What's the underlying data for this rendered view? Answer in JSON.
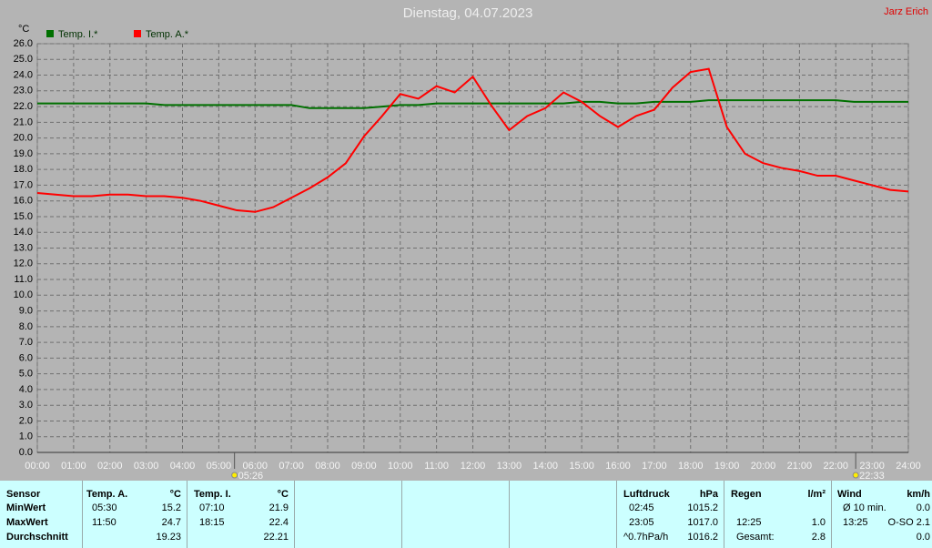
{
  "chart_data": {
    "type": "line",
    "title": "Dienstag, 04.07.2023",
    "author": "Jarz Erich",
    "y_label": "°C",
    "x": [
      0,
      0.5,
      1,
      1.5,
      2,
      2.5,
      3,
      3.5,
      4,
      4.5,
      5,
      5.5,
      6,
      6.5,
      7,
      7.5,
      8,
      8.5,
      9,
      9.5,
      10,
      10.5,
      11,
      11.5,
      12,
      12.5,
      13,
      13.5,
      14,
      14.5,
      15,
      15.5,
      16,
      16.5,
      17,
      17.5,
      18,
      18.5,
      19,
      19.5,
      20,
      20.5,
      21,
      21.5,
      22,
      22.5,
      23,
      23.5,
      24
    ],
    "series": [
      {
        "name": "Temp. I.*",
        "color": "#007000",
        "values": [
          22.2,
          22.2,
          22.2,
          22.2,
          22.2,
          22.2,
          22.2,
          22.1,
          22.1,
          22.1,
          22.1,
          22.1,
          22.1,
          22.1,
          22.1,
          21.9,
          21.9,
          21.9,
          21.9,
          22.0,
          22.1,
          22.1,
          22.2,
          22.2,
          22.2,
          22.2,
          22.2,
          22.2,
          22.2,
          22.2,
          22.3,
          22.3,
          22.2,
          22.2,
          22.3,
          22.3,
          22.3,
          22.4,
          22.4,
          22.4,
          22.4,
          22.4,
          22.4,
          22.4,
          22.4,
          22.3,
          22.3,
          22.3,
          22.3
        ]
      },
      {
        "name": "Temp. A.*",
        "color": "#ff0000",
        "values": [
          16.5,
          16.4,
          16.3,
          16.3,
          16.4,
          16.4,
          16.3,
          16.3,
          16.2,
          16.0,
          15.7,
          15.4,
          15.3,
          15.6,
          16.2,
          16.8,
          17.5,
          18.4,
          20.1,
          21.4,
          22.8,
          22.5,
          23.3,
          22.9,
          23.9,
          22.1,
          20.5,
          21.4,
          21.9,
          22.9,
          22.3,
          21.4,
          20.7,
          21.4,
          21.8,
          23.2,
          24.2,
          24.4,
          20.7,
          19.0,
          18.4,
          18.1,
          17.9,
          17.6,
          17.6,
          17.3,
          17.0,
          16.7,
          16.6
        ]
      }
    ],
    "xlim": [
      0,
      24
    ],
    "xticks": [
      {
        "value": 0,
        "label": "00:00"
      },
      {
        "value": 1,
        "label": "01:00"
      },
      {
        "value": 2,
        "label": "02:00"
      },
      {
        "value": 3,
        "label": "03:00"
      },
      {
        "value": 4,
        "label": "04:00"
      },
      {
        "value": 5,
        "label": "05:00"
      },
      {
        "value": 6,
        "label": "06:00"
      },
      {
        "value": 7,
        "label": "07:00"
      },
      {
        "value": 8,
        "label": "08:00"
      },
      {
        "value": 9,
        "label": "09:00"
      },
      {
        "value": 10,
        "label": "10:00"
      },
      {
        "value": 11,
        "label": "11:00"
      },
      {
        "value": 12,
        "label": "12:00"
      },
      {
        "value": 13,
        "label": "13:00"
      },
      {
        "value": 14,
        "label": "14:00"
      },
      {
        "value": 15,
        "label": "15:00"
      },
      {
        "value": 16,
        "label": "16:00"
      },
      {
        "value": 17,
        "label": "17:00"
      },
      {
        "value": 18,
        "label": "18:00"
      },
      {
        "value": 19,
        "label": "19:00"
      },
      {
        "value": 20,
        "label": "20:00"
      },
      {
        "value": 21,
        "label": "21:00"
      },
      {
        "value": 22,
        "label": "22:00"
      },
      {
        "value": 23,
        "label": "23:00"
      },
      {
        "value": 24,
        "label": "24:00"
      }
    ],
    "ylim": [
      0,
      26
    ],
    "yticks": [
      {
        "value": 0,
        "label": "0.0"
      },
      {
        "value": 1,
        "label": "1.0"
      },
      {
        "value": 2,
        "label": "2.0"
      },
      {
        "value": 3,
        "label": "3.0"
      },
      {
        "value": 4,
        "label": "4.0"
      },
      {
        "value": 5,
        "label": "5.0"
      },
      {
        "value": 6,
        "label": "6.0"
      },
      {
        "value": 7,
        "label": "7.0"
      },
      {
        "value": 8,
        "label": "8.0"
      },
      {
        "value": 9,
        "label": "9.0"
      },
      {
        "value": 10,
        "label": "10.0"
      },
      {
        "value": 11,
        "label": "11.0"
      },
      {
        "value": 12,
        "label": "12.0"
      },
      {
        "value": 13,
        "label": "13.0"
      },
      {
        "value": 14,
        "label": "14.0"
      },
      {
        "value": 15,
        "label": "15.0"
      },
      {
        "value": 16,
        "label": "16.0"
      },
      {
        "value": 17,
        "label": "17.0"
      },
      {
        "value": 18,
        "label": "18.0"
      },
      {
        "value": 19,
        "label": "19.0"
      },
      {
        "value": 20,
        "label": "20.0"
      },
      {
        "value": 21,
        "label": "21.0"
      },
      {
        "value": 22,
        "label": "22.0"
      },
      {
        "value": 23,
        "label": "23.0"
      },
      {
        "value": 24,
        "label": "24.0"
      },
      {
        "value": 25,
        "label": "25.0"
      },
      {
        "value": 26,
        "label": "26.0"
      }
    ],
    "grid": true,
    "sun_markers": [
      {
        "x": 5.4333,
        "label": "05:26"
      },
      {
        "x": 22.55,
        "label": "22:33"
      }
    ]
  },
  "stats": {
    "labels": [
      "Sensor",
      "MinWert",
      "MaxWert",
      "Durchschnitt"
    ],
    "groups": [
      {
        "header": [
          "Temp. A.",
          "°C"
        ],
        "rows": [
          [
            "05:30",
            "15.2"
          ],
          [
            "11:50",
            "24.7"
          ],
          [
            null,
            "19.23"
          ]
        ]
      },
      {
        "header": [
          "Temp. I.",
          "°C"
        ],
        "rows": [
          [
            "07:10",
            "21.9"
          ],
          [
            "18:15",
            "22.4"
          ],
          [
            null,
            "22.21"
          ]
        ]
      },
      {
        "header": [
          "Luftdruck",
          "hPa"
        ],
        "rows": [
          [
            "02:45",
            "1015.2"
          ],
          [
            "23:05",
            "1017.0"
          ],
          [
            "^0.7hPa/h",
            "1016.2"
          ]
        ]
      },
      {
        "header": [
          "Regen",
          "l/m²"
        ],
        "rows": [
          [
            null,
            null
          ],
          [
            "12:25",
            "1.0"
          ],
          [
            "Gesamt:",
            "2.8"
          ]
        ]
      },
      {
        "header": [
          "Wind",
          "km/h"
        ],
        "rows": [
          [
            "Ø 10 min.",
            "0.0"
          ],
          [
            "13:25",
            "O-SO 2.1"
          ],
          [
            null,
            "0.0"
          ]
        ]
      }
    ]
  }
}
